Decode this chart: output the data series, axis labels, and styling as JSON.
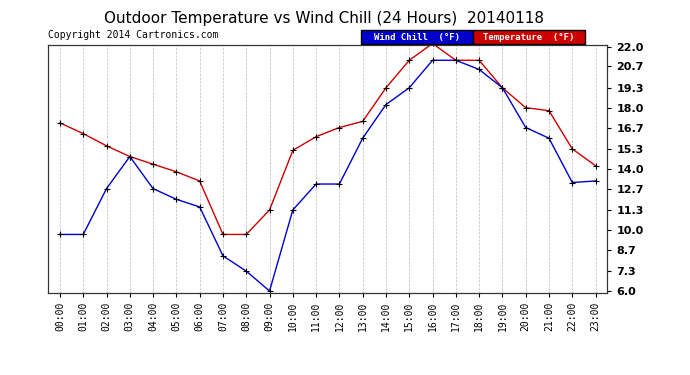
{
  "title": "Outdoor Temperature vs Wind Chill (24 Hours)  20140118",
  "copyright": "Copyright 2014 Cartronics.com",
  "legend_wind_chill": "Wind Chill  (°F)",
  "legend_temperature": "Temperature  (°F)",
  "x_labels": [
    "00:00",
    "01:00",
    "02:00",
    "03:00",
    "04:00",
    "05:00",
    "06:00",
    "07:00",
    "08:00",
    "09:00",
    "10:00",
    "11:00",
    "12:00",
    "13:00",
    "14:00",
    "15:00",
    "16:00",
    "17:00",
    "18:00",
    "19:00",
    "20:00",
    "21:00",
    "22:00",
    "23:00"
  ],
  "y_ticks": [
    6.0,
    7.3,
    8.7,
    10.0,
    11.3,
    12.7,
    14.0,
    15.3,
    16.7,
    18.0,
    19.3,
    20.7,
    22.0
  ],
  "temperature": [
    17.0,
    16.3,
    15.5,
    14.8,
    14.3,
    13.8,
    13.2,
    9.7,
    9.7,
    11.3,
    15.2,
    16.1,
    16.7,
    17.1,
    19.3,
    21.1,
    22.2,
    21.1,
    21.1,
    19.3,
    18.0,
    17.8,
    15.3,
    14.2
  ],
  "wind_chill": [
    9.7,
    9.7,
    12.7,
    14.8,
    12.7,
    12.0,
    11.5,
    8.3,
    7.3,
    6.0,
    11.3,
    13.0,
    13.0,
    16.0,
    18.2,
    19.3,
    21.1,
    21.1,
    20.5,
    19.3,
    16.7,
    16.0,
    13.1,
    13.2
  ],
  "bg_color": "#ffffff",
  "grid_color": "#bbbbbb",
  "temp_color": "#cc0000",
  "wind_color": "#0000cc",
  "ylim_min": 6.0,
  "ylim_max": 22.0,
  "title_fontsize": 11,
  "axis_fontsize": 7,
  "copyright_fontsize": 7
}
